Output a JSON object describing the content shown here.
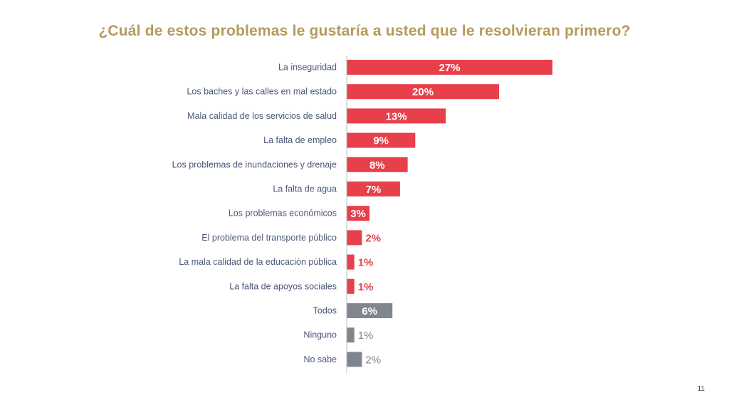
{
  "slide": {
    "title": "¿Cuál de estos problemas le gustaría a usted que le resolvieran primero?",
    "page_number": "11"
  },
  "colors": {
    "title": "#B59A5C",
    "problem_bar": "#E8404B",
    "other_bar": "#7F868F",
    "label_text": "#4A5878",
    "axis_line": "#BFBFBF"
  },
  "chart_data": {
    "type": "bar",
    "orientation": "horizontal",
    "title": "",
    "xlabel": "",
    "ylabel": "",
    "xlim": [
      0,
      27
    ],
    "grid": false,
    "legend": "none",
    "categories": [
      "La inseguridad",
      "Los baches y las calles en mal estado",
      "Mala calidad de los servicios de salud",
      "La falta de empleo",
      "Los problemas de inundaciones y drenaje",
      "La falta de agua",
      "Los problemas económicos",
      "El problema del transporte público",
      "La mala calidad de la educación pública",
      "La falta de apoyos sociales",
      "Todos",
      "Ninguno",
      "No sabe"
    ],
    "values": [
      27,
      20,
      13,
      9,
      8,
      7,
      3,
      2,
      1,
      1,
      6,
      1,
      2
    ],
    "value_labels": [
      "27%",
      "20%",
      "13%",
      "9%",
      "8%",
      "7%",
      "3%",
      "2%",
      "1%",
      "1%",
      "6%",
      "1%",
      "2%"
    ],
    "groups": [
      "problem",
      "problem",
      "problem",
      "problem",
      "problem",
      "problem",
      "problem",
      "problem",
      "problem",
      "problem",
      "other",
      "other",
      "other"
    ]
  }
}
